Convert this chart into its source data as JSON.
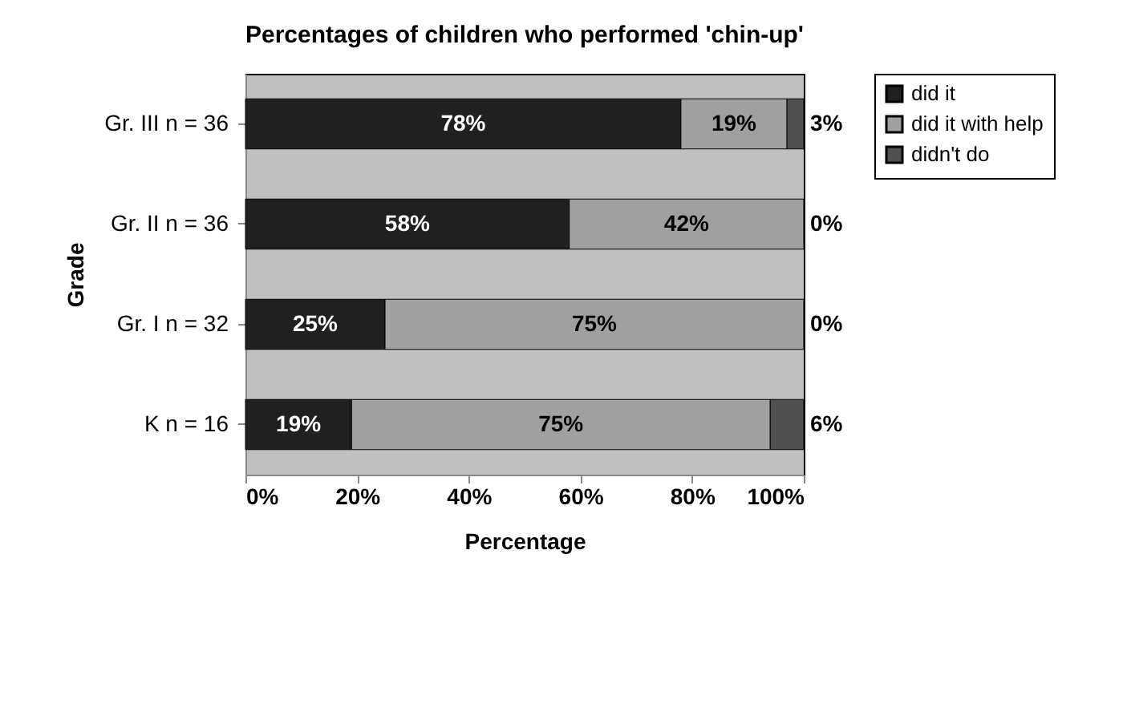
{
  "chart_data": {
    "type": "bar",
    "orientation": "horizontal",
    "stacked": true,
    "title": "Percentages of children who performed 'chin-up'",
    "xlabel": "Percentage",
    "ylabel": "Grade",
    "categories": [
      "Gr. III n = 36",
      "Gr. II n = 36",
      "Gr. I n = 32",
      "K n = 16"
    ],
    "series": [
      {
        "name": "did it",
        "color": "#202020",
        "values": [
          78,
          58,
          25,
          19
        ],
        "value_labels": [
          "78%",
          "58%",
          "25%",
          "19%"
        ]
      },
      {
        "name": "did it with help",
        "color": "#a0a0a0",
        "values": [
          19,
          42,
          75,
          75
        ],
        "value_labels": [
          "19%",
          "42%",
          "75%",
          "75%"
        ]
      },
      {
        "name": "didn't do",
        "color": "#505050",
        "values": [
          3,
          0,
          0,
          6
        ],
        "value_labels": [
          "3%",
          "0%",
          "0%",
          "6%"
        ]
      }
    ],
    "xlim": [
      0,
      100
    ],
    "xticks": [
      {
        "value": 0,
        "label": "0%"
      },
      {
        "value": 20,
        "label": "20%"
      },
      {
        "value": 40,
        "label": "40%"
      },
      {
        "value": 60,
        "label": "60%"
      },
      {
        "value": 80,
        "label": "80%"
      },
      {
        "value": 100,
        "label": "100%"
      }
    ],
    "legend": "right"
  }
}
